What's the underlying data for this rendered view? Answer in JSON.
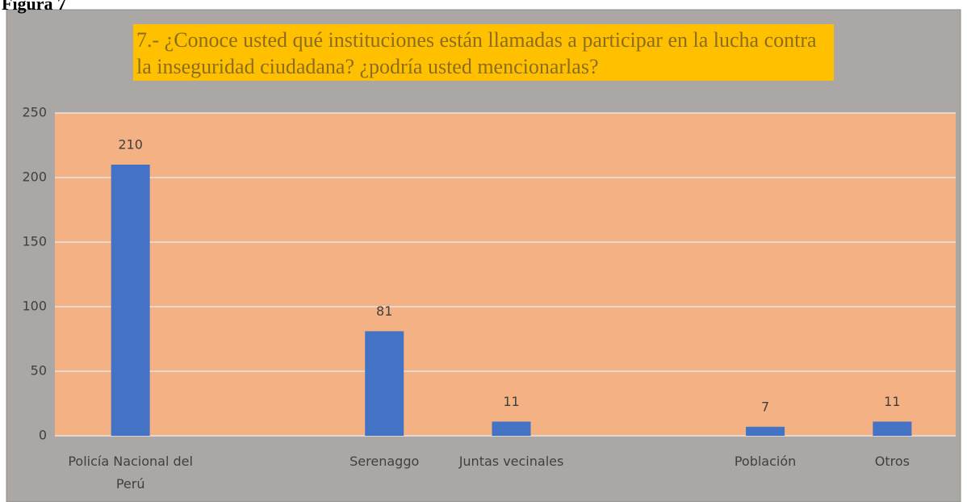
{
  "figure_label": "Figura 7",
  "chart_data": {
    "type": "bar",
    "title": "7.- ¿Conoce usted qué instituciones están llamadas a participar en la lucha contra la inseguridad ciudadana? ¿podría usted mencionarlas?",
    "categories": [
      "Policía Nacional del Perú",
      null,
      "Serenaggo",
      "Juntas vecinales",
      null,
      "Población",
      "Otros"
    ],
    "values": [
      210,
      null,
      81,
      11,
      null,
      7,
      11
    ],
    "color": "#4472c4",
    "ylim": [
      0,
      250
    ],
    "yticks": [
      0,
      50,
      100,
      150,
      200,
      250
    ],
    "grid": true
  }
}
